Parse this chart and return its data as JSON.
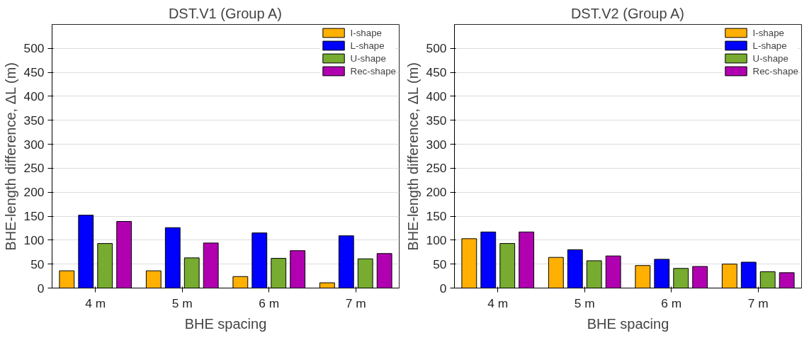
{
  "chart_data": [
    {
      "type": "bar",
      "title": "DST.V1 (Group A)",
      "xlabel": "BHE spacing",
      "ylabel": "BHE-length difference, ΔL (m)",
      "categories": [
        "4 m",
        "5 m",
        "6 m",
        "7 m"
      ],
      "series": [
        {
          "name": "I-shape",
          "color": "#ffb000",
          "values": [
            36,
            36,
            24,
            11
          ]
        },
        {
          "name": "L-shape",
          "color": "#0000ff",
          "values": [
            152,
            126,
            115,
            109
          ]
        },
        {
          "name": "U-shape",
          "color": "#77ac30",
          "values": [
            93,
            63,
            62,
            61
          ]
        },
        {
          "name": "Rec-shape",
          "color": "#b000b0",
          "values": [
            139,
            94,
            78,
            72
          ]
        }
      ],
      "ylim": [
        0,
        550
      ],
      "yticks": [
        0,
        50,
        100,
        150,
        200,
        250,
        300,
        350,
        400,
        450,
        500
      ],
      "grid": "y",
      "legend": "top right"
    },
    {
      "type": "bar",
      "title": "DST.V2 (Group A)",
      "xlabel": "BHE spacing",
      "ylabel": "BHE-length difference, ΔL (m)",
      "categories": [
        "4 m",
        "5 m",
        "6 m",
        "7 m"
      ],
      "series": [
        {
          "name": "I-shape",
          "color": "#ffb000",
          "values": [
            103,
            64,
            47,
            50
          ]
        },
        {
          "name": "L-shape",
          "color": "#0000ff",
          "values": [
            117,
            80,
            60,
            54
          ]
        },
        {
          "name": "U-shape",
          "color": "#77ac30",
          "values": [
            93,
            57,
            41,
            34
          ]
        },
        {
          "name": "Rec-shape",
          "color": "#b000b0",
          "values": [
            117,
            67,
            45,
            32
          ]
        }
      ],
      "ylim": [
        0,
        550
      ],
      "yticks": [
        0,
        50,
        100,
        150,
        200,
        250,
        300,
        350,
        400,
        450,
        500
      ],
      "grid": "y",
      "legend": "top right"
    }
  ]
}
